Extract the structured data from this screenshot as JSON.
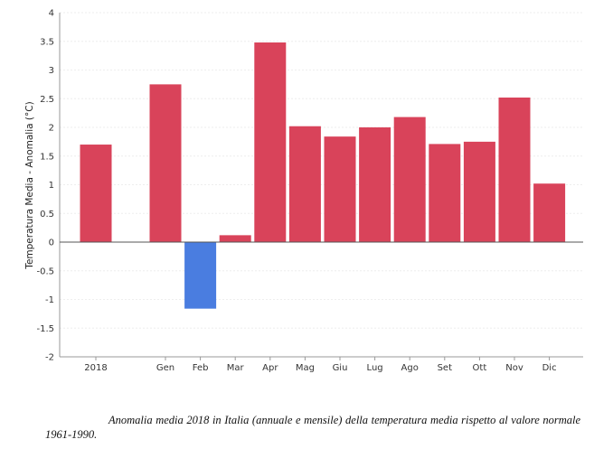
{
  "chart_data": {
    "type": "bar",
    "title": "",
    "xlabel": "",
    "ylabel": "Temperatura Media - Anomalia (°C)",
    "ylim": [
      -2,
      4
    ],
    "yticks": [
      "4",
      "3.5",
      "3",
      "2.5",
      "2",
      "1.5",
      "1",
      "0.5",
      "0",
      "-0.5",
      "-1",
      "-1.5",
      "-2"
    ],
    "grid": true,
    "legend": "none",
    "categories": [
      "2018",
      "Gen",
      "Feb",
      "Mar",
      "Apr",
      "Mag",
      "Giu",
      "Lug",
      "Ago",
      "Set",
      "Ott",
      "Nov",
      "Dic"
    ],
    "values": [
      1.7,
      2.75,
      -1.16,
      0.12,
      3.48,
      2.02,
      1.84,
      2.0,
      2.18,
      1.71,
      1.75,
      2.52,
      1.02
    ],
    "colors": {
      "positive": "#d9435a",
      "negative": "#4a7de0",
      "axis": "#999999",
      "grid": "#eeeeee"
    }
  },
  "caption": "Anomalia media 2018 in Italia (annuale e mensile) della temperatura media rispetto al valore normale 1961-1990."
}
